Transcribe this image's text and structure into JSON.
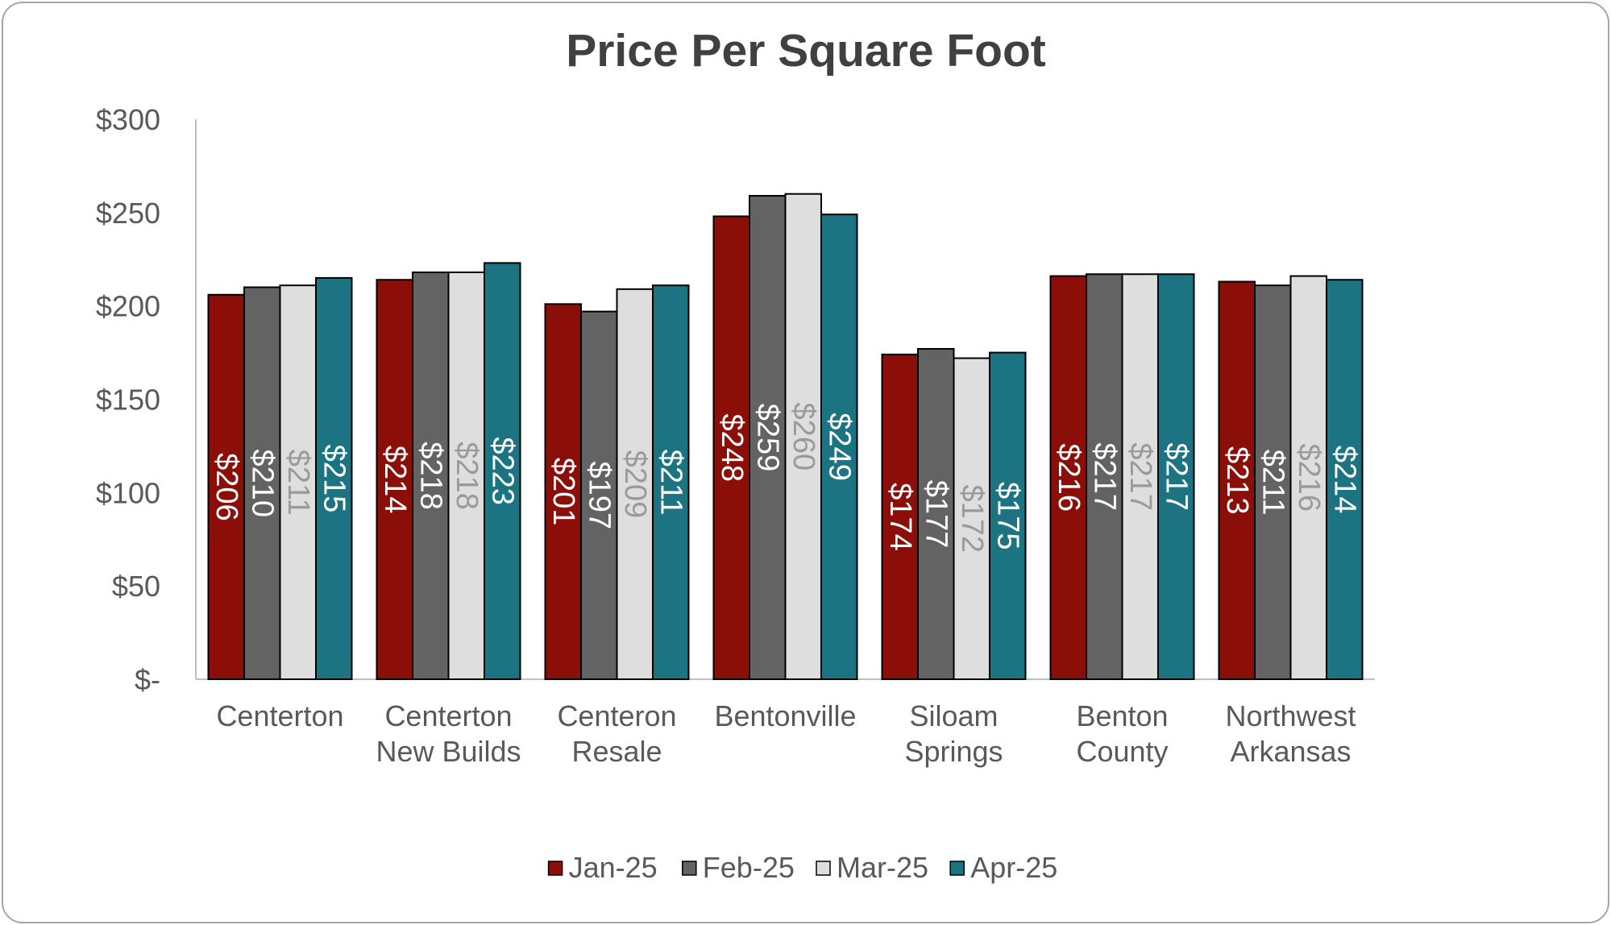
{
  "chart_data": {
    "type": "bar",
    "title": "Price Per Square Foot",
    "xlabel": "",
    "ylabel": "",
    "ylim": [
      0,
      300
    ],
    "yticks": [
      0,
      50,
      100,
      150,
      200,
      250,
      300
    ],
    "ytick_labels": [
      "$-",
      "$50",
      "$100",
      "$150",
      "$200",
      "$250",
      "$300"
    ],
    "gridlines": false,
    "legend_position": "bottom",
    "categories": [
      "Centerton",
      "Centerton New Builds",
      "Centeron Resale",
      "Bentonville",
      "Siloam Springs",
      "Benton County",
      "Northwest Arkansas"
    ],
    "category_lines": [
      [
        "Centerton"
      ],
      [
        "Centerton",
        "New Builds"
      ],
      [
        "Centeron",
        "Resale"
      ],
      [
        "Bentonville"
      ],
      [
        "Siloam",
        "Springs"
      ],
      [
        "Benton",
        "County"
      ],
      [
        "Northwest",
        "Arkansas"
      ]
    ],
    "series": [
      {
        "name": "Jan-25",
        "color": "#8b0f08",
        "label_color": "#ffffff",
        "values": [
          206,
          214,
          201,
          248,
          174,
          216,
          213
        ],
        "labels": [
          "$206",
          "$214",
          "$201",
          "$248",
          "$174",
          "$216",
          "$213"
        ]
      },
      {
        "name": "Feb-25",
        "color": "#636363",
        "label_color": "#ffffff",
        "values": [
          210,
          218,
          197,
          259,
          177,
          217,
          211
        ],
        "labels": [
          "$210",
          "$218",
          "$197",
          "$259",
          "$177",
          "$217",
          "$211"
        ]
      },
      {
        "name": "Mar-25",
        "color": "#dedede",
        "label_color": "#9a9a9a",
        "values": [
          211,
          218,
          209,
          260,
          172,
          217,
          216
        ],
        "labels": [
          "$211",
          "$218",
          "$209",
          "$260",
          "$172",
          "$217",
          "$216"
        ]
      },
      {
        "name": "Apr-25",
        "color": "#1c7483",
        "label_color": "#ffffff",
        "values": [
          215,
          223,
          211,
          249,
          175,
          217,
          214
        ],
        "labels": [
          "$215",
          "$223",
          "$211",
          "$249",
          "$175",
          "$217",
          "$214"
        ]
      }
    ]
  }
}
